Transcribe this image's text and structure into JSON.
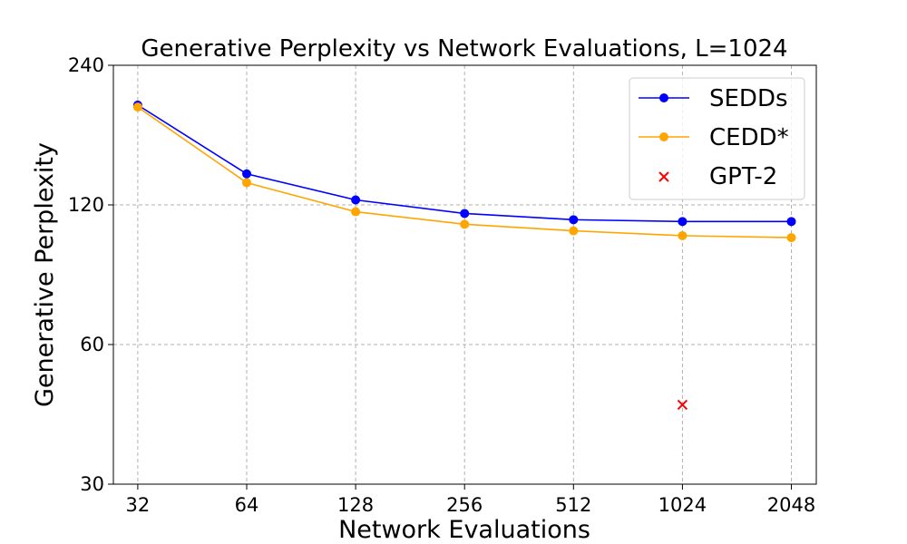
{
  "chart_data": {
    "type": "line",
    "title": "Generative Perplexity vs Network Evaluations, L=1024",
    "xlabel": "Network Evaluations",
    "ylabel": "Generative Perplexity",
    "x_scale": "log2",
    "y_scale": "log",
    "categories": [
      "32",
      "64",
      "128",
      "256",
      "512",
      "1024",
      "2048"
    ],
    "x": [
      32,
      64,
      128,
      256,
      512,
      1024,
      2048
    ],
    "ylim": [
      30,
      240
    ],
    "yticks": [
      30,
      60,
      120,
      240
    ],
    "ytick_labels": [
      "30",
      "60",
      "120",
      "240"
    ],
    "xlim": [
      27.4,
      2400
    ],
    "grid": true,
    "legend_position": "top-right",
    "series": [
      {
        "name": "SEDDs",
        "color": "#0000ff",
        "marker": "circle",
        "values": [
          197,
          140,
          123,
          115,
          111.5,
          110.5,
          110.5
        ]
      },
      {
        "name": "CEDD*",
        "color": "#ffa500",
        "marker": "circle",
        "values": [
          195,
          134,
          116,
          109,
          105.5,
          103,
          102
        ]
      }
    ],
    "points": [
      {
        "name": "GPT-2",
        "color": "#ff0000",
        "marker": "x",
        "x": 1024,
        "y": 44.5
      }
    ]
  }
}
